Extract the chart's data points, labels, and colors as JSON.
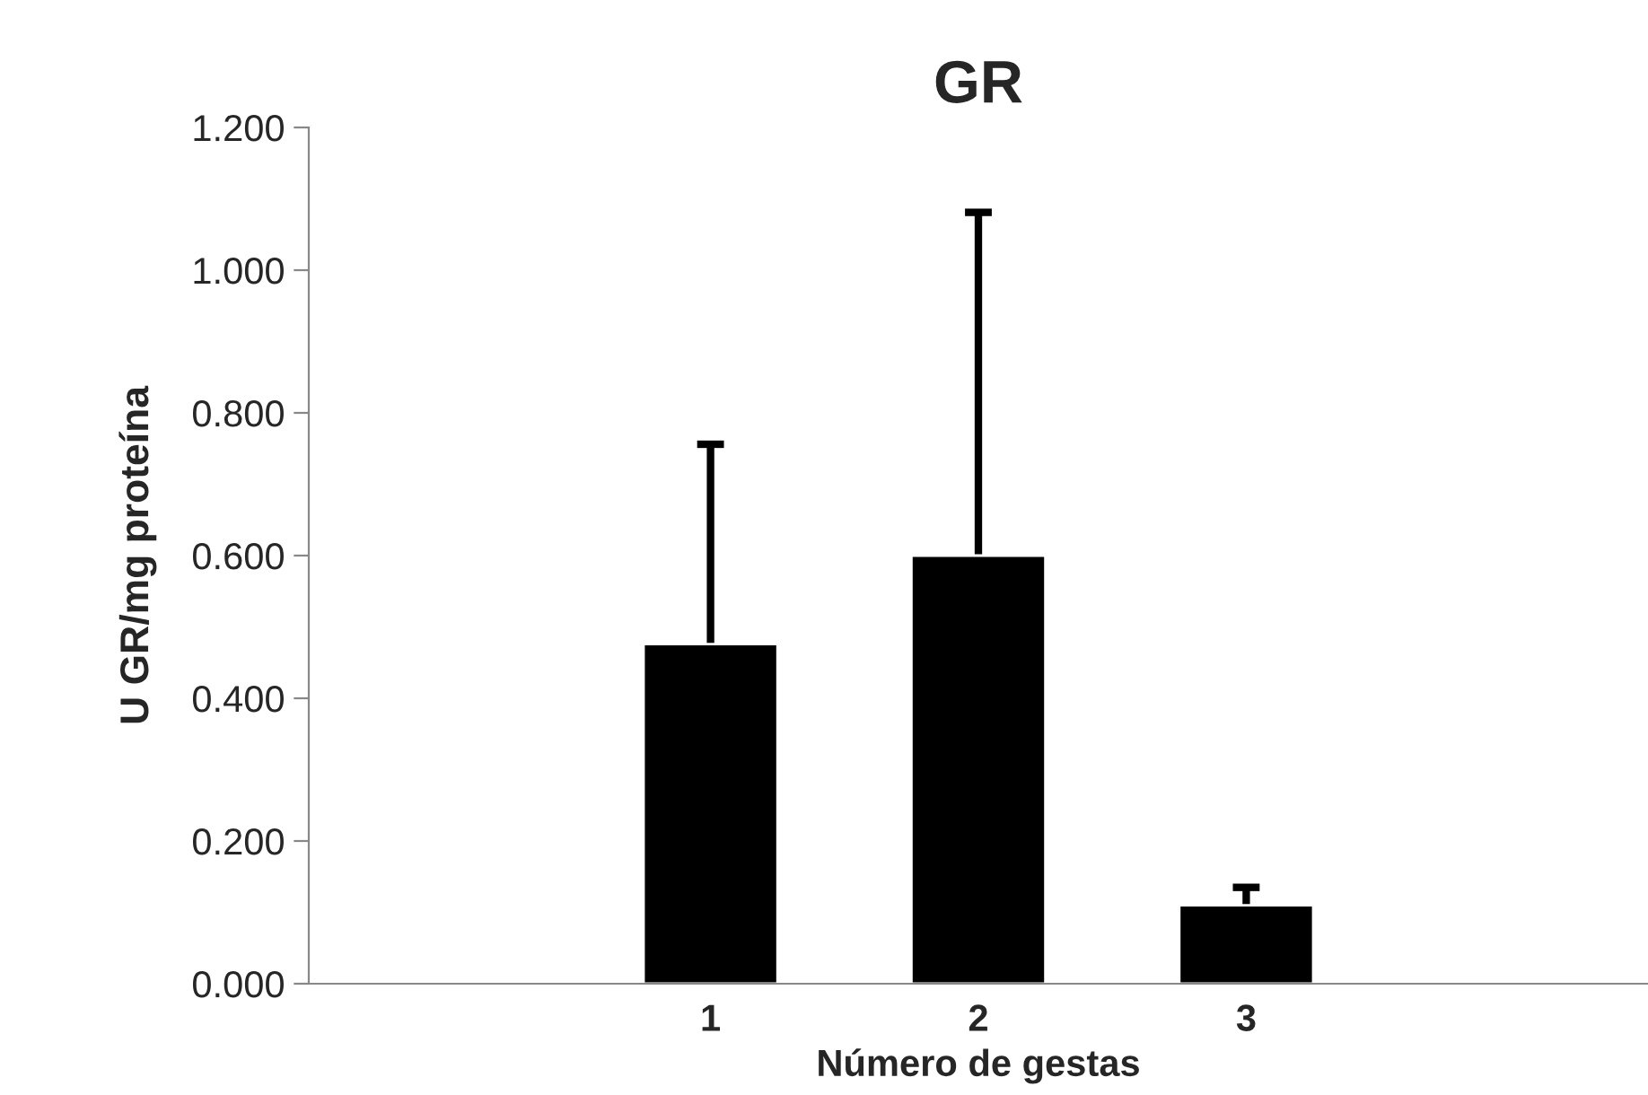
{
  "chart_data": {
    "type": "bar",
    "title": "GR",
    "xlabel": "Número de gestas",
    "ylabel": "U GR/mg proteína",
    "categories": [
      null,
      "1",
      "2",
      "3",
      null
    ],
    "values": [
      null,
      0.476,
      0.6,
      0.11,
      null
    ],
    "errors": [
      null,
      [
        0.476,
        0.756
      ],
      [
        0.6,
        1.081
      ],
      [
        0.11,
        0.135
      ],
      null
    ],
    "color": "#000000",
    "ylim": [
      0,
      1.2
    ],
    "yticks": [
      {
        "value": 0,
        "label": "0.000"
      },
      {
        "value": 0.2,
        "label": "0.200"
      },
      {
        "value": 0.4,
        "label": "0.400"
      },
      {
        "value": 0.6,
        "label": "0.600"
      },
      {
        "value": 0.8,
        "label": "0.800"
      },
      {
        "value": 1.0,
        "label": "1.000"
      },
      {
        "value": 1.2,
        "label": "1.200"
      }
    ],
    "grid": false,
    "legend": false
  }
}
